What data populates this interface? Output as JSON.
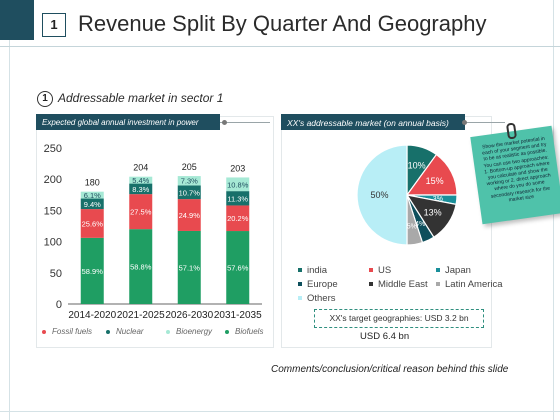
{
  "slide": {
    "number": "1",
    "title": "Revenue Split By Quarter And Geography",
    "section_number": "1",
    "section_title": "Addressable market in sector 1",
    "footer": "Comments/conclusion/critical reason behind this slide"
  },
  "colors": {
    "frame": "#1f4e5f",
    "fossil_fuels": "#e84a4f",
    "nuclear": "#17706a",
    "bioenergy": "#a6e9d5",
    "biofuels": "#1f9e63",
    "sticky": "#4fc2aa"
  },
  "bar_panel": {
    "header": "Expected global annual investment in power"
  },
  "pie_panel": {
    "header": "XX's addressable market (on annual basis)",
    "target_note": "XX's target geographies: USD 3.2 bn",
    "total": "USD 6.4 bn"
  },
  "sticky_note": {
    "text": "Show the market potential in each of your segment and try to be as realistic as possible. You can use two approaches: 1. Bottom-up approach where you calculate and show the working or 2. direct approach where do you do some secondary research for the market size"
  },
  "chart_data": [
    {
      "type": "bar",
      "stacked": true,
      "categories": [
        "2014-2020",
        "2021-2025",
        "2026-2030",
        "2031-2035"
      ],
      "totals": [
        180,
        204,
        205,
        203
      ],
      "total_labels": [
        "180",
        "204",
        "205",
        "203"
      ],
      "ylim": [
        0,
        250
      ],
      "yticks": [
        0,
        50,
        100,
        150,
        200,
        250
      ],
      "ytick_labels": [
        "0",
        "50",
        "100",
        "150",
        "200",
        "250"
      ],
      "legend_position": "bottom",
      "series": [
        {
          "name": "Biofuels",
          "key": "biofuels",
          "shares": [
            58.9,
            58.8,
            57.1,
            57.6
          ],
          "labels": [
            "58.9%",
            "58.8%",
            "57.1%",
            "57.6%"
          ]
        },
        {
          "name": "Fossil fuels",
          "key": "fossil_fuels",
          "shares": [
            25.6,
            27.5,
            24.9,
            20.2
          ],
          "labels": [
            "25.6%",
            "27.5%",
            "24.9%",
            "20.2%"
          ]
        },
        {
          "name": "Nuclear",
          "key": "nuclear",
          "shares": [
            9.4,
            8.3,
            10.7,
            11.3
          ],
          "labels": [
            "9.4%",
            "8.3%",
            "10.7%",
            "11.3%"
          ]
        },
        {
          "name": "Bioenergy",
          "key": "bioenergy",
          "shares": [
            6.1,
            5.4,
            7.3,
            10.8
          ],
          "labels": [
            "6.1%",
            "5.4%",
            "7.3%",
            "10.8%"
          ]
        }
      ],
      "legend": [
        "Fossil fuels",
        "Nuclear",
        "Bioenergy",
        "Biofuels"
      ]
    },
    {
      "type": "pie",
      "slices": [
        {
          "name": "india",
          "value": 10,
          "label": "10%",
          "color": "#17706a"
        },
        {
          "name": "US",
          "value": 15,
          "label": "15%",
          "color": "#e84a4f"
        },
        {
          "name": "Japan",
          "value": 3,
          "label": "3%",
          "color": "#1a8f9a"
        },
        {
          "name": "Middle East",
          "value": 13,
          "label": "13%",
          "color": "#333333"
        },
        {
          "name": "Europe",
          "value": 4,
          "label": "4%",
          "color": "#0e4f5c"
        },
        {
          "name": "Latin America",
          "value": 5,
          "label": "5%",
          "color": "#a9a9a9"
        },
        {
          "name": "Others",
          "value": 50,
          "label": "50%",
          "color": "#b8eef6"
        }
      ],
      "legend": [
        "india",
        "US",
        "Japan",
        "Europe",
        "Middle East",
        "Latin America",
        "Others"
      ],
      "legend_position": "bottom"
    }
  ]
}
